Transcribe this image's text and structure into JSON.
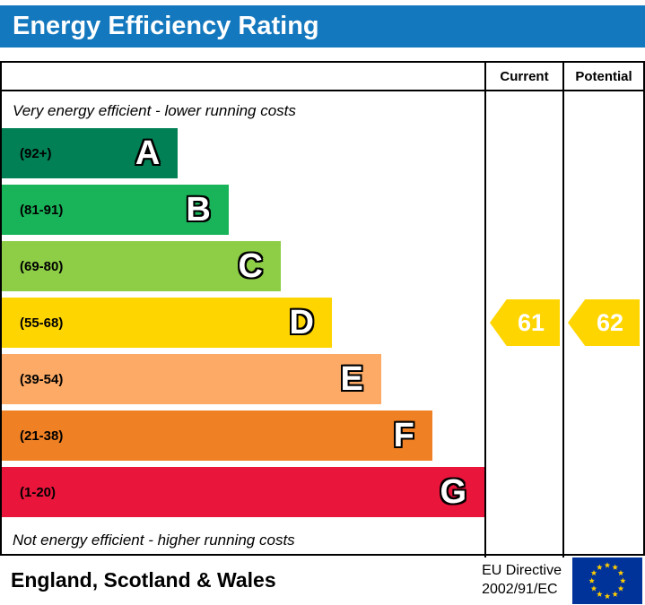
{
  "header": {
    "title": "Energy Efficiency Rating",
    "bg_color": "#1478be"
  },
  "columns": {
    "current": "Current",
    "potential": "Potential"
  },
  "notes": {
    "top": "Very energy efficient - lower running costs",
    "bottom": "Not energy efficient - higher running costs"
  },
  "chart_data": {
    "type": "bar",
    "title": "Energy Efficiency Rating",
    "bands": [
      {
        "letter": "A",
        "range": "(92+)",
        "color": "#008054",
        "width_pct": 36.5
      },
      {
        "letter": "B",
        "range": "(81-91)",
        "color": "#19b459",
        "width_pct": 47.0
      },
      {
        "letter": "C",
        "range": "(69-80)",
        "color": "#8dce46",
        "width_pct": 57.8
      },
      {
        "letter": "D",
        "range": "(55-68)",
        "color": "#ffd500",
        "width_pct": 68.4
      },
      {
        "letter": "E",
        "range": "(39-54)",
        "color": "#fcaa65",
        "width_pct": 78.6
      },
      {
        "letter": "F",
        "range": "(21-38)",
        "color": "#ef8023",
        "width_pct": 89.2
      },
      {
        "letter": "G",
        "range": "(1-20)",
        "color": "#e9153b",
        "width_pct": 100
      }
    ],
    "current": {
      "value": 61,
      "band": "D",
      "color": "#ffd500"
    },
    "potential": {
      "value": 62,
      "band": "D",
      "color": "#ffd500"
    }
  },
  "footer": {
    "region": "England, Scotland & Wales",
    "directive": {
      "line1": "EU Directive",
      "line2": "2002/91/EC"
    },
    "flag_colors": {
      "field": "#003399",
      "stars": "#ffcc00"
    }
  }
}
